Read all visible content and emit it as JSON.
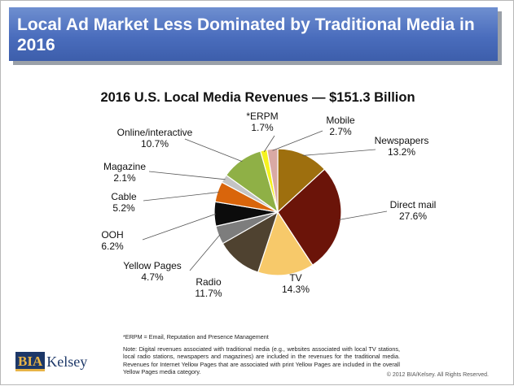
{
  "slide": {
    "title": "Local Ad Market Less Dominated by Traditional Media in 2016",
    "footnote_erpm": "*ERPM = Email, Reputation and Presence Management",
    "footnote_note": "Note: Digital revenues associated with traditional media (e.g., websites associated with local TV stations, local radio stations, newspapers and magazines) are included in the revenues for the traditional media. Revenues for Internet Yellow Pages that are associated with print Yellow Pages are included in the overall Yellow Pages media category.",
    "logo_mark": "BIA",
    "logo_word": "Kelsey",
    "copyright": "© 2012 BIA/Kelsey. All Rights Reserved."
  },
  "chart_data": {
    "type": "pie",
    "title": "2016 U.S. Local Media Revenues — $151.3 Billion",
    "slices": [
      {
        "label": "Newspapers",
        "value": 13.2,
        "display": "13.2%",
        "color": "#9e6f0e"
      },
      {
        "label": "Direct mail",
        "value": 27.6,
        "display": "27.6%",
        "color": "#6b1409"
      },
      {
        "label": "TV",
        "value": 14.3,
        "display": "14.3%",
        "color": "#f7c96a"
      },
      {
        "label": "Radio",
        "value": 11.7,
        "display": "11.7%",
        "color": "#4f4230"
      },
      {
        "label": "Yellow Pages",
        "value": 4.7,
        "display": "4.7%",
        "color": "#7d7d7d"
      },
      {
        "label": "OOH",
        "value": 6.2,
        "display": "6.2%",
        "color": "#0c0c0c"
      },
      {
        "label": "Cable",
        "value": 5.2,
        "display": "5.2%",
        "color": "#d9650b"
      },
      {
        "label": "Magazine",
        "value": 2.1,
        "display": "2.1%",
        "color": "#c4c4c4"
      },
      {
        "label": "Online/interactive",
        "value": 10.7,
        "display": "10.7%",
        "color": "#8fb046"
      },
      {
        "label": "*ERPM",
        "value": 1.7,
        "display": "1.7%",
        "color": "#f5f21e"
      },
      {
        "label": "Mobile",
        "value": 2.7,
        "display": "2.7%",
        "color": "#d9a9a4"
      }
    ]
  }
}
